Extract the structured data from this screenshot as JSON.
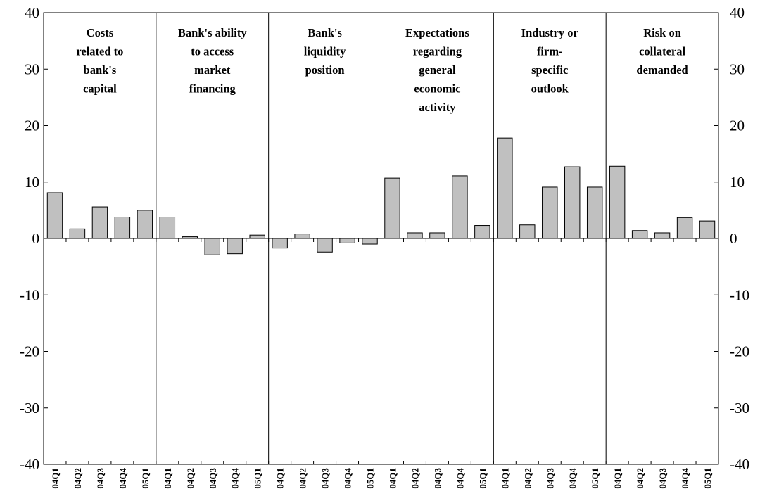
{
  "chart_data": {
    "type": "bar",
    "title": "",
    "xlabel": "",
    "ylabel": "",
    "ylim": [
      -40,
      40
    ],
    "yticks": [
      40,
      30,
      20,
      10,
      0,
      -10,
      -20,
      -30,
      -40
    ],
    "secondary_y_axis": true,
    "grid": false,
    "legend": "none",
    "bar_color": "#c0c0c0",
    "bar_edge_color": "#000000",
    "categories": [
      "04Q1",
      "04Q2",
      "04Q3",
      "04Q4",
      "05Q1"
    ],
    "panels": [
      {
        "title": [
          "Costs",
          "related to",
          "bank's",
          "capital"
        ],
        "values": [
          8.1,
          1.7,
          5.6,
          3.8,
          5.0
        ]
      },
      {
        "title": [
          "Bank's ability",
          "to access",
          "market",
          "financing"
        ],
        "values": [
          3.8,
          0.3,
          -2.9,
          -2.7,
          0.6
        ]
      },
      {
        "title": [
          "Bank's",
          "liquidity",
          "position"
        ],
        "values": [
          -1.7,
          0.8,
          -2.4,
          -0.8,
          -1.0
        ]
      },
      {
        "title": [
          "Expectations",
          "regarding",
          "general",
          "economic",
          "activity"
        ],
        "values": [
          10.7,
          1.0,
          1.0,
          11.1,
          2.3
        ]
      },
      {
        "title": [
          "Industry or",
          "firm-",
          "specific",
          "outlook"
        ],
        "values": [
          17.8,
          2.4,
          9.1,
          12.7,
          9.1
        ]
      },
      {
        "title": [
          "Risk on",
          "collateral",
          "demanded"
        ],
        "values": [
          12.8,
          1.4,
          1.0,
          3.7,
          3.1
        ]
      }
    ]
  }
}
